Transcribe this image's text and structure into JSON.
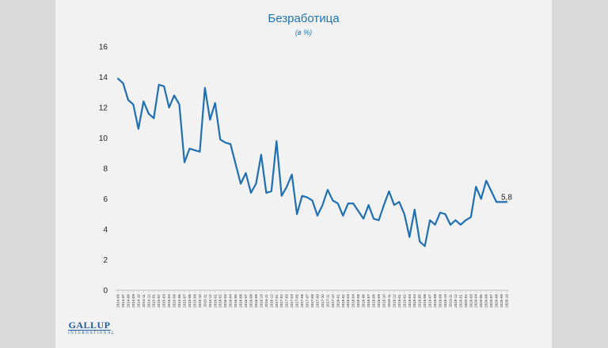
{
  "title": "Безработица",
  "subtitle": "(в %)",
  "logo": {
    "main": "GALLUP",
    "sub": "INTERNATIONAL"
  },
  "chart_data": {
    "type": "line",
    "title": "Безработица",
    "subtitle": "(в %)",
    "ylim": [
      0,
      16
    ],
    "yticks": [
      0,
      2,
      4,
      6,
      8,
      10,
      12,
      14,
      16
    ],
    "grid": false,
    "color": "#1f6fb2",
    "last_label": "5,8",
    "x": [
      "2014-06",
      "2014-07",
      "2014-08",
      "2014-09",
      "2014-10",
      "2014-11",
      "2014-12",
      "2015-01",
      "2015-02",
      "2015-03",
      "2015-04",
      "2015-05",
      "2015-06",
      "2015-07",
      "2015-08",
      "2015-09",
      "2015-10",
      "2015-11",
      "2015-12",
      "2016-01",
      "2016-02",
      "2016-03",
      "2016-04",
      "2016-05",
      "2016-06",
      "2016-07",
      "2016-08",
      "2016-09",
      "2016-10",
      "2016-11",
      "2016-12",
      "2017-01",
      "2017-02",
      "2017-03",
      "2017-04",
      "2017-05",
      "2017-06",
      "2017-07",
      "2017-08",
      "2017-09",
      "2017-10",
      "2017-11",
      "2017-12",
      "2018-01",
      "2018-02",
      "2018-03",
      "2018-04",
      "2018-05",
      "2018-06",
      "2018-07",
      "2018-08",
      "2018-09",
      "2018-10",
      "2018-11",
      "2018-12",
      "2019-01",
      "2019-02",
      "2019-03",
      "2019-04",
      "2019-05",
      "2019-06",
      "2019-07",
      "2019-08",
      "2019-09",
      "2019-10",
      "2019-11",
      "2019-12",
      "2020-01",
      "2020-02",
      "2020-03",
      "2020-04",
      "2020-05",
      "2020-06",
      "2020-07",
      "2020-08",
      "2020-09",
      "2020-10"
    ],
    "series": [
      {
        "values": [
          13.9,
          13.6,
          12.5,
          12.2,
          10.6,
          12.4,
          11.6,
          11.3,
          13.5,
          13.4,
          12.0,
          12.8,
          12.2,
          8.4,
          9.3,
          9.2,
          9.1,
          13.3,
          11.2,
          12.3,
          9.9,
          9.7,
          9.6,
          8.3,
          7.0,
          7.7,
          6.4,
          7.0,
          8.9,
          6.4,
          6.5,
          9.8,
          6.2,
          6.8,
          7.6,
          5.0,
          6.2,
          6.1,
          5.9,
          4.9,
          5.6,
          6.6,
          5.9,
          5.7,
          4.9,
          5.7,
          5.7,
          5.2,
          4.7,
          5.6,
          4.7,
          4.6,
          5.6,
          6.5,
          5.6,
          5.8,
          5.0,
          3.5,
          5.3,
          3.2,
          2.9,
          4.6,
          4.3,
          5.1,
          5.0,
          4.3,
          4.6,
          4.3,
          4.6,
          4.8,
          6.8,
          6.0,
          7.2,
          6.5,
          5.8,
          5.8,
          5.8
        ]
      }
    ]
  }
}
